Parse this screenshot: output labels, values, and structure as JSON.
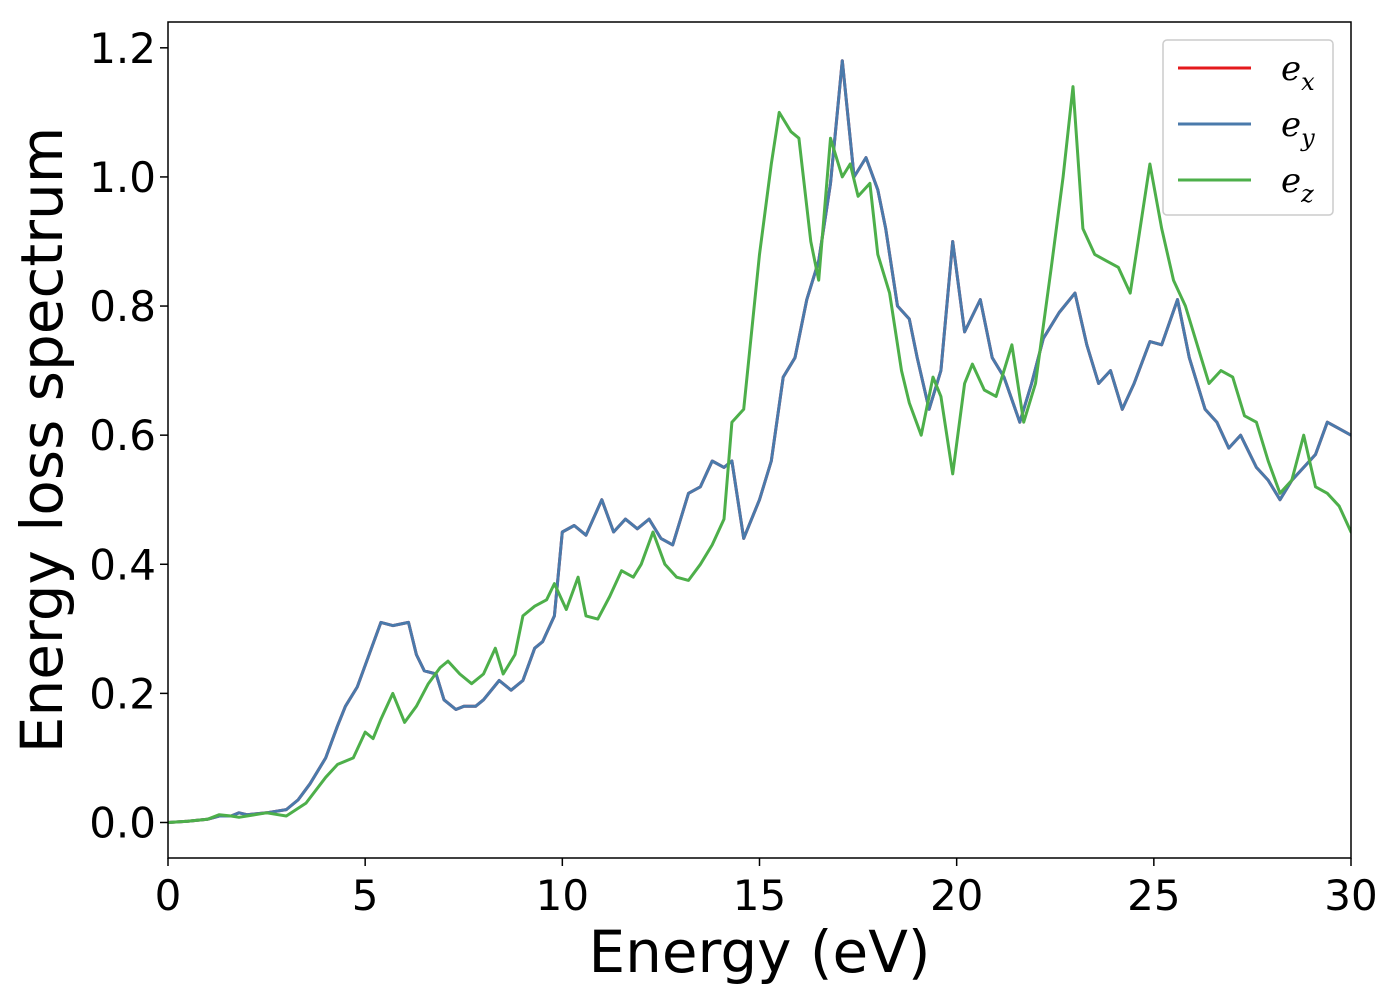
{
  "chart_data": {
    "type": "line",
    "title": "",
    "xlabel": "Energy (eV)",
    "ylabel": "Energy loss spectrum",
    "xlim": [
      0,
      30
    ],
    "ylim": [
      -0.055,
      1.24
    ],
    "xticks": [
      0,
      5,
      10,
      15,
      20,
      25,
      30
    ],
    "xtick_labels": [
      "0",
      "5",
      "10",
      "15",
      "20",
      "25",
      "30"
    ],
    "yticks": [
      0.0,
      0.2,
      0.4,
      0.6,
      0.8,
      1.0,
      1.2
    ],
    "ytick_labels": [
      "0.0",
      "0.2",
      "0.4",
      "0.6",
      "0.8",
      "1.0",
      "1.2"
    ],
    "grid": false,
    "legend": "top-right",
    "series": [
      {
        "name": "e_x",
        "label_base": "e",
        "label_sub": "x",
        "color": "#e41a1c",
        "x": [
          0,
          0.5,
          1,
          1.3,
          1.6,
          1.8,
          2,
          2.5,
          3,
          3.3,
          3.6,
          4,
          4.3,
          4.5,
          4.8,
          5.1,
          5.4,
          5.7,
          6.1,
          6.3,
          6.5,
          6.8,
          7,
          7.3,
          7.5,
          7.8,
          8,
          8.4,
          8.7,
          9,
          9.3,
          9.5,
          9.8,
          10,
          10.3,
          10.6,
          11,
          11.3,
          11.6,
          11.9,
          12.2,
          12.5,
          12.8,
          13.2,
          13.5,
          13.8,
          14.1,
          14.3,
          14.6,
          15,
          15.3,
          15.6,
          15.9,
          16.2,
          16.5,
          16.8,
          17.1,
          17.4,
          17.7,
          18,
          18.2,
          18.5,
          18.8,
          19,
          19.3,
          19.6,
          19.9,
          20.2,
          20.6,
          20.9,
          21.2,
          21.6,
          21.9,
          22.2,
          22.6,
          23,
          23.3,
          23.6,
          23.9,
          24.2,
          24.5,
          24.9,
          25.2,
          25.6,
          25.9,
          26.3,
          26.6,
          26.9,
          27.2,
          27.6,
          27.9,
          28.2,
          28.5,
          28.8,
          29.1,
          29.4,
          29.7,
          30
        ],
        "y": [
          0,
          0.002,
          0.005,
          0.01,
          0.01,
          0.015,
          0.012,
          0.015,
          0.02,
          0.035,
          0.06,
          0.1,
          0.15,
          0.18,
          0.21,
          0.26,
          0.31,
          0.305,
          0.31,
          0.26,
          0.235,
          0.23,
          0.19,
          0.175,
          0.18,
          0.18,
          0.19,
          0.22,
          0.205,
          0.22,
          0.27,
          0.28,
          0.32,
          0.45,
          0.46,
          0.445,
          0.5,
          0.45,
          0.47,
          0.455,
          0.47,
          0.44,
          0.43,
          0.51,
          0.52,
          0.56,
          0.55,
          0.56,
          0.44,
          0.5,
          0.56,
          0.69,
          0.72,
          0.81,
          0.87,
          0.99,
          1.18,
          1.0,
          1.03,
          0.98,
          0.92,
          0.8,
          0.78,
          0.72,
          0.64,
          0.7,
          0.9,
          0.76,
          0.81,
          0.72,
          0.69,
          0.62,
          0.68,
          0.75,
          0.79,
          0.82,
          0.74,
          0.68,
          0.7,
          0.64,
          0.68,
          0.745,
          0.74,
          0.81,
          0.72,
          0.64,
          0.62,
          0.58,
          0.6,
          0.55,
          0.53,
          0.5,
          0.53,
          0.55,
          0.57,
          0.62,
          0.61,
          0.6
        ]
      },
      {
        "name": "e_y",
        "label_base": "e",
        "label_sub": "y",
        "color": "#4a7aab",
        "x": [
          0,
          0.5,
          1,
          1.3,
          1.6,
          1.8,
          2,
          2.5,
          3,
          3.3,
          3.6,
          4,
          4.3,
          4.5,
          4.8,
          5.1,
          5.4,
          5.7,
          6.1,
          6.3,
          6.5,
          6.8,
          7,
          7.3,
          7.5,
          7.8,
          8,
          8.4,
          8.7,
          9,
          9.3,
          9.5,
          9.8,
          10,
          10.3,
          10.6,
          11,
          11.3,
          11.6,
          11.9,
          12.2,
          12.5,
          12.8,
          13.2,
          13.5,
          13.8,
          14.1,
          14.3,
          14.6,
          15,
          15.3,
          15.6,
          15.9,
          16.2,
          16.5,
          16.8,
          17.1,
          17.4,
          17.7,
          18,
          18.2,
          18.5,
          18.8,
          19,
          19.3,
          19.6,
          19.9,
          20.2,
          20.6,
          20.9,
          21.2,
          21.6,
          21.9,
          22.2,
          22.6,
          23,
          23.3,
          23.6,
          23.9,
          24.2,
          24.5,
          24.9,
          25.2,
          25.6,
          25.9,
          26.3,
          26.6,
          26.9,
          27.2,
          27.6,
          27.9,
          28.2,
          28.5,
          28.8,
          29.1,
          29.4,
          29.7,
          30
        ],
        "y": [
          0,
          0.002,
          0.005,
          0.01,
          0.01,
          0.015,
          0.012,
          0.015,
          0.02,
          0.035,
          0.06,
          0.1,
          0.15,
          0.18,
          0.21,
          0.26,
          0.31,
          0.305,
          0.31,
          0.26,
          0.235,
          0.23,
          0.19,
          0.175,
          0.18,
          0.18,
          0.19,
          0.22,
          0.205,
          0.22,
          0.27,
          0.28,
          0.32,
          0.45,
          0.46,
          0.445,
          0.5,
          0.45,
          0.47,
          0.455,
          0.47,
          0.44,
          0.43,
          0.51,
          0.52,
          0.56,
          0.55,
          0.56,
          0.44,
          0.5,
          0.56,
          0.69,
          0.72,
          0.81,
          0.87,
          0.99,
          1.18,
          1.0,
          1.03,
          0.98,
          0.92,
          0.8,
          0.78,
          0.72,
          0.64,
          0.7,
          0.9,
          0.76,
          0.81,
          0.72,
          0.69,
          0.62,
          0.68,
          0.75,
          0.79,
          0.82,
          0.74,
          0.68,
          0.7,
          0.64,
          0.68,
          0.745,
          0.74,
          0.81,
          0.72,
          0.64,
          0.62,
          0.58,
          0.6,
          0.55,
          0.53,
          0.5,
          0.53,
          0.55,
          0.57,
          0.62,
          0.61,
          0.6
        ]
      },
      {
        "name": "e_z",
        "label_base": "e",
        "label_sub": "z",
        "color": "#4daf4a",
        "x": [
          0,
          0.5,
          1,
          1.3,
          1.6,
          1.8,
          2,
          2.5,
          3,
          3.5,
          4,
          4.3,
          4.7,
          5,
          5.2,
          5.4,
          5.7,
          6,
          6.3,
          6.6,
          6.9,
          7.1,
          7.4,
          7.7,
          8,
          8.3,
          8.5,
          8.8,
          9,
          9.3,
          9.6,
          9.8,
          10.1,
          10.4,
          10.6,
          10.9,
          11.2,
          11.5,
          11.8,
          12,
          12.3,
          12.6,
          12.9,
          13.2,
          13.5,
          13.8,
          14.1,
          14.3,
          14.6,
          15,
          15.3,
          15.5,
          15.8,
          16,
          16.3,
          16.5,
          16.8,
          17.1,
          17.3,
          17.5,
          17.8,
          18,
          18.3,
          18.6,
          18.8,
          19.1,
          19.4,
          19.6,
          19.9,
          20.2,
          20.4,
          20.7,
          21,
          21.4,
          21.7,
          22,
          22.4,
          22.7,
          22.95,
          23.2,
          23.5,
          23.8,
          24.1,
          24.4,
          24.6,
          24.9,
          25.2,
          25.5,
          25.8,
          26.1,
          26.4,
          26.7,
          27,
          27.3,
          27.6,
          27.9,
          28.2,
          28.5,
          28.8,
          29.1,
          29.4,
          29.7,
          30
        ],
        "y": [
          0,
          0.002,
          0.005,
          0.012,
          0.01,
          0.008,
          0.01,
          0.015,
          0.01,
          0.03,
          0.07,
          0.09,
          0.1,
          0.14,
          0.13,
          0.16,
          0.2,
          0.155,
          0.18,
          0.215,
          0.24,
          0.25,
          0.23,
          0.215,
          0.23,
          0.27,
          0.23,
          0.26,
          0.32,
          0.335,
          0.345,
          0.37,
          0.33,
          0.38,
          0.32,
          0.315,
          0.35,
          0.39,
          0.38,
          0.4,
          0.45,
          0.4,
          0.38,
          0.375,
          0.4,
          0.43,
          0.47,
          0.62,
          0.64,
          0.88,
          1.02,
          1.1,
          1.07,
          1.06,
          0.9,
          0.84,
          1.06,
          1.0,
          1.02,
          0.97,
          0.99,
          0.88,
          0.82,
          0.7,
          0.65,
          0.6,
          0.69,
          0.66,
          0.54,
          0.68,
          0.71,
          0.67,
          0.66,
          0.74,
          0.62,
          0.68,
          0.86,
          1.0,
          1.14,
          0.92,
          0.88,
          0.87,
          0.86,
          0.82,
          0.9,
          1.02,
          0.92,
          0.84,
          0.8,
          0.74,
          0.68,
          0.7,
          0.69,
          0.63,
          0.62,
          0.56,
          0.51,
          0.53,
          0.6,
          0.52,
          0.51,
          0.49,
          0.45
        ]
      }
    ]
  }
}
